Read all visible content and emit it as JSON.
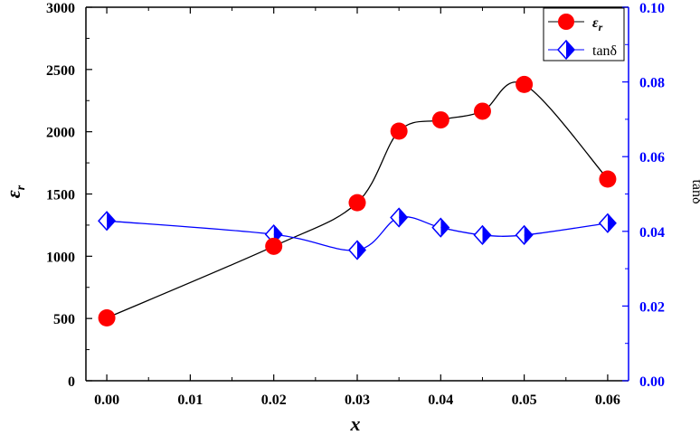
{
  "chart_data": {
    "type": "line",
    "xlabel": "x",
    "ylabel": "ε",
    "ylabel_sub": "r",
    "y2label": "tanδ",
    "xlim": [
      -0.0025,
      0.0625
    ],
    "ylim": [
      0,
      3000
    ],
    "y2lim": [
      0,
      0.1
    ],
    "xticks": [
      "0.00",
      "0.01",
      "0.02",
      "0.03",
      "0.04",
      "0.05",
      "0.06"
    ],
    "yticks": [
      "0",
      "500",
      "1000",
      "1500",
      "2000",
      "2500",
      "3000"
    ],
    "y2ticks": [
      "0.00",
      "0.02",
      "0.04",
      "0.06",
      "0.08",
      "0.10"
    ],
    "x": [
      0.0,
      0.02,
      0.03,
      0.035,
      0.04,
      0.045,
      0.05,
      0.06
    ],
    "series": [
      {
        "name": "ε",
        "name_sub": "r",
        "axis": "left",
        "color": "#ff0000",
        "line_color": "#000000",
        "marker": "circle",
        "values": [
          505,
          1080,
          1430,
          2005,
          2095,
          2165,
          2380,
          1620
        ]
      },
      {
        "name": "tanδ",
        "axis": "right",
        "color": "#0000ff",
        "line_color": "#0000ff",
        "marker": "half-filled-diamond",
        "values": [
          0.0428,
          0.0392,
          0.035,
          0.0437,
          0.041,
          0.039,
          0.039,
          0.0422
        ]
      }
    ],
    "legend_position": "top-right",
    "right_axis_color": "#0000ff",
    "grid": false
  }
}
